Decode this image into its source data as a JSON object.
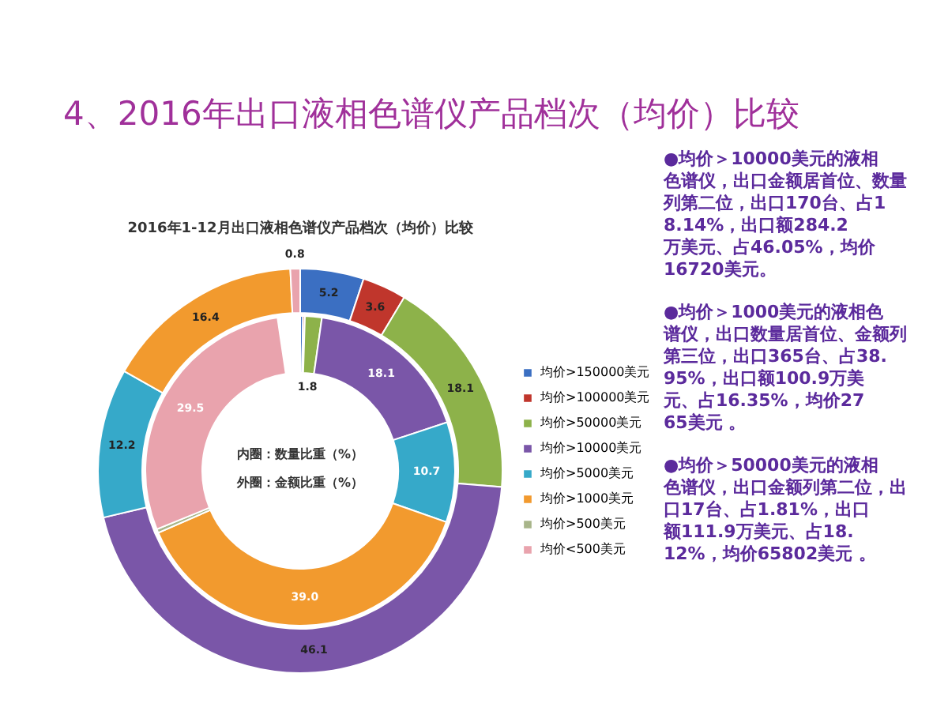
{
  "chart_data": {
    "type": "donut",
    "title": "4、2016年出口液相色谱仪产品档次（均价）比较",
    "subtitle": "2016年1-12月出口液相色谱仪产品档次（均价）比较",
    "categories": [
      "均价>150000美元",
      "均价>100000美元",
      "均价>50000美元",
      "均价>10000美元",
      "均价>5000美元",
      "均价>1000美元",
      "均价>500美元",
      "均价<500美元"
    ],
    "colors": [
      "#3b6fc2",
      "#c0362c",
      "#8db24a",
      "#7a56a8",
      "#36a9c9",
      "#f29a2e",
      "#a8b58a",
      "#e9a3ad"
    ],
    "series": [
      {
        "values": [
          5.2,
          3.6,
          18.1,
          46.1,
          12.2,
          16.4,
          null,
          0.8
        ],
        "value_labels": [
          "5.2",
          "3.6",
          "18.1",
          "46.1",
          "12.2",
          "16.4",
          null,
          "0.8"
        ]
      },
      {
        "values": [
          0.3,
          0.2,
          1.8,
          18.1,
          10.7,
          39.0,
          0.4,
          29.5
        ],
        "value_labels": [
          null,
          null,
          "1.8",
          "18.1",
          "10.7",
          "39.0",
          null,
          "29.5"
        ]
      }
    ],
    "legend": "right",
    "annotations": [
      "内圈：数量比重（%）",
      "外圈：金额比重（%）",
      "●均价＞10000美元的液相色谱仪，出口金额居首位、数量列第二位，出口170台、占18.14%，出口额284.2万美元、占46.05%，均价16720美元。",
      "●均价＞1000美元的液相色谱仪，出口数量居首位、金额列第三位，出口365台、占38.95%，出口额100.9万美元、占16.35%，均价2765美元 。",
      "●均价＞50000美元的液相色谱仪，出口金额列第二位，出口17台、占1.81%，出口额111.9万美元、占18.12%，均价65802美元 。"
    ]
  }
}
